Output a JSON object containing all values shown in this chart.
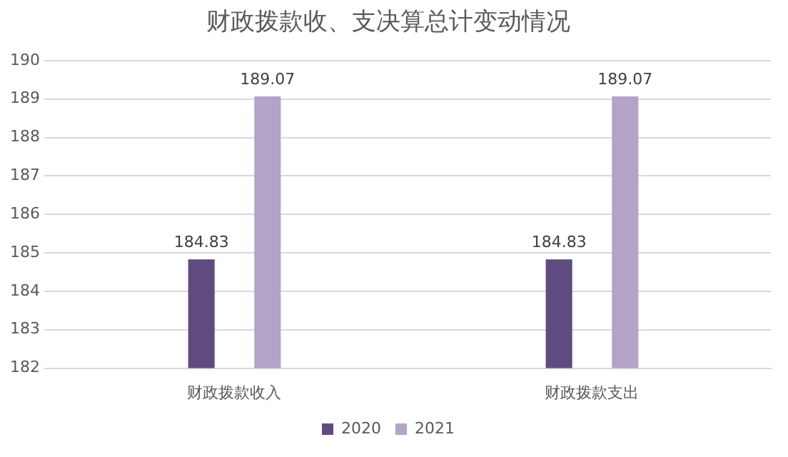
{
  "chart_data": {
    "type": "bar",
    "title": "财政拨款收、支决算总计变动情况",
    "categories": [
      "财政拨款收入",
      "财政拨款支出"
    ],
    "series": [
      {
        "name": "2020",
        "color": "#5f4b80",
        "values": [
          184.83,
          184.83
        ]
      },
      {
        "name": "2021",
        "color": "#b3a3c9",
        "values": [
          189.07,
          189.07
        ]
      }
    ],
    "ylim": [
      182,
      190
    ],
    "yticks": [
      182,
      183,
      184,
      185,
      186,
      187,
      188,
      189,
      190
    ],
    "grid": "y",
    "legend": "bottom",
    "data_labels": true
  }
}
